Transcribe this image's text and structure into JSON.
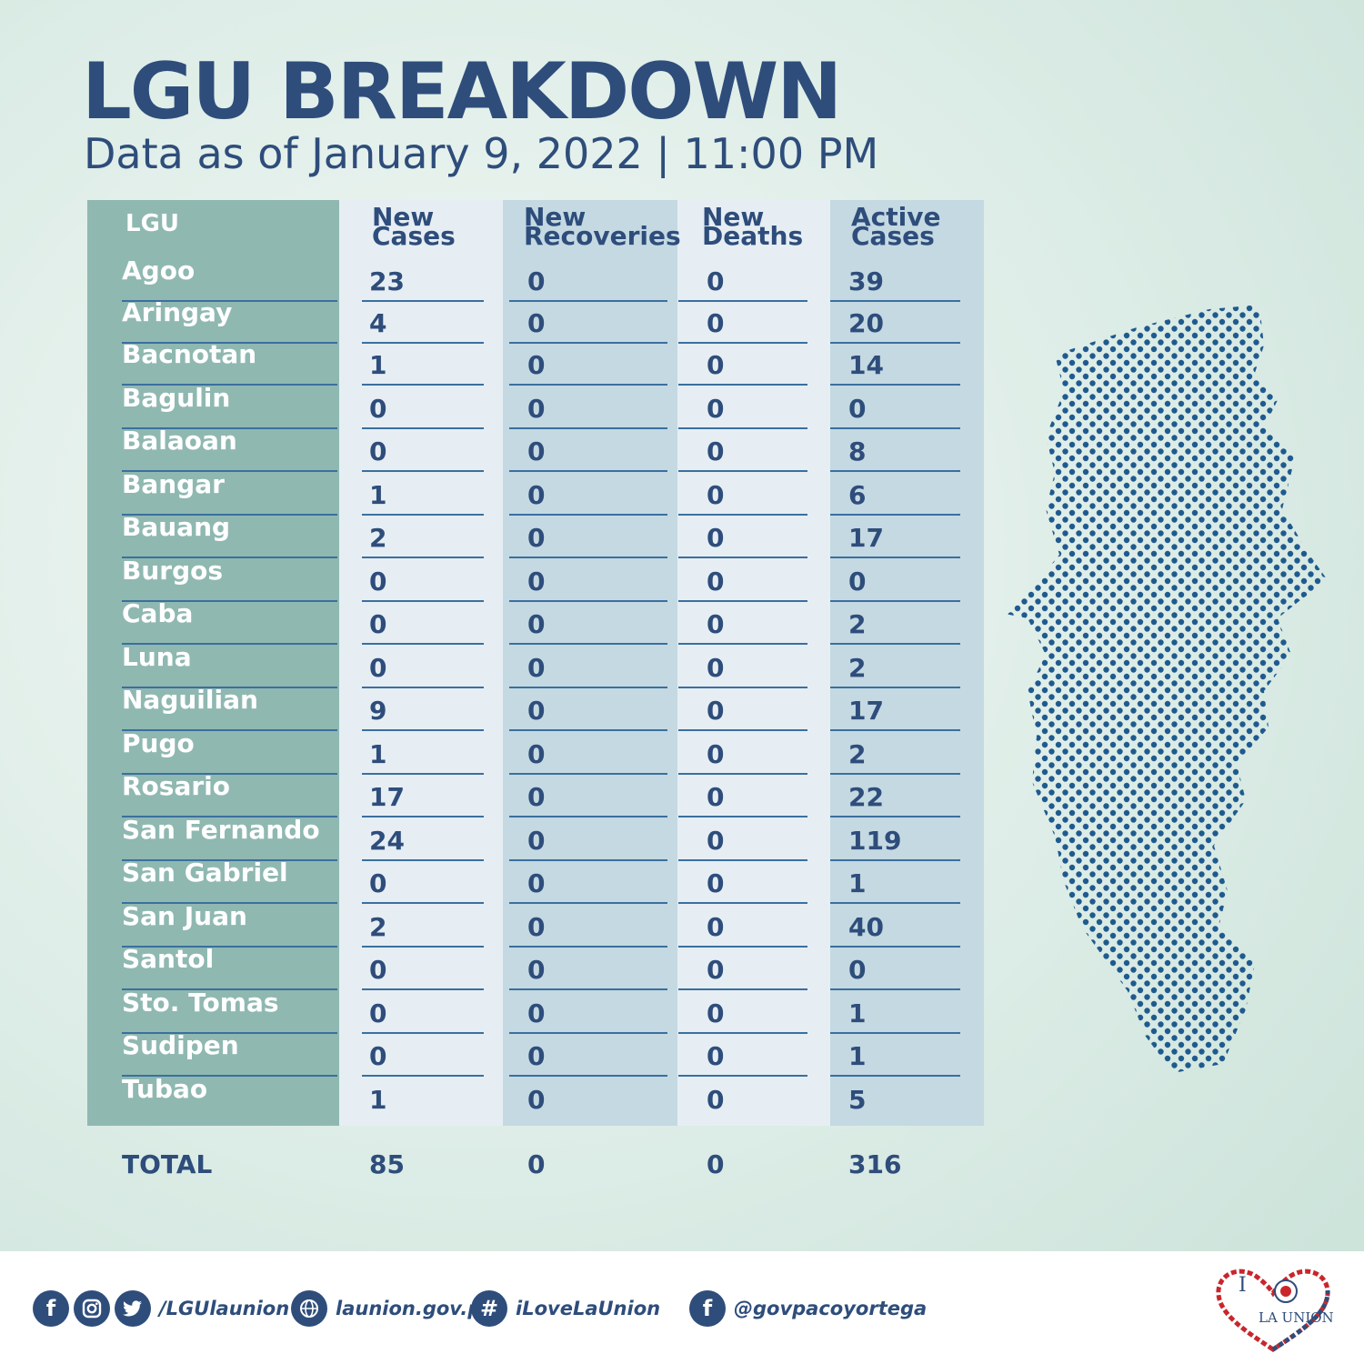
{
  "header": {
    "title": "LGU BREAKDOWN",
    "subtitle": "Data as of January 9, 2022 | 11:00 PM"
  },
  "table": {
    "columns": [
      "LGU",
      "New\nCases",
      "New\nRecoveries",
      "New\nDeaths",
      "Active\nCases"
    ],
    "rows": [
      {
        "lgu": "Agoo",
        "new_cases": "23",
        "new_recoveries": "0",
        "new_deaths": "0",
        "active_cases": "39"
      },
      {
        "lgu": "Aringay",
        "new_cases": "4",
        "new_recoveries": "0",
        "new_deaths": "0",
        "active_cases": "20"
      },
      {
        "lgu": "Bacnotan",
        "new_cases": "1",
        "new_recoveries": "0",
        "new_deaths": "0",
        "active_cases": "14"
      },
      {
        "lgu": "Bagulin",
        "new_cases": "0",
        "new_recoveries": "0",
        "new_deaths": "0",
        "active_cases": "0"
      },
      {
        "lgu": "Balaoan",
        "new_cases": "0",
        "new_recoveries": "0",
        "new_deaths": "0",
        "active_cases": "8"
      },
      {
        "lgu": "Bangar",
        "new_cases": "1",
        "new_recoveries": "0",
        "new_deaths": "0",
        "active_cases": "6"
      },
      {
        "lgu": "Bauang",
        "new_cases": "2",
        "new_recoveries": "0",
        "new_deaths": "0",
        "active_cases": "17"
      },
      {
        "lgu": "Burgos",
        "new_cases": "0",
        "new_recoveries": "0",
        "new_deaths": "0",
        "active_cases": "0"
      },
      {
        "lgu": "Caba",
        "new_cases": "0",
        "new_recoveries": "0",
        "new_deaths": "0",
        "active_cases": "2"
      },
      {
        "lgu": "Luna",
        "new_cases": "0",
        "new_recoveries": "0",
        "new_deaths": "0",
        "active_cases": "2"
      },
      {
        "lgu": "Naguilian",
        "new_cases": "9",
        "new_recoveries": "0",
        "new_deaths": "0",
        "active_cases": "17"
      },
      {
        "lgu": "Pugo",
        "new_cases": "1",
        "new_recoveries": "0",
        "new_deaths": "0",
        "active_cases": "2"
      },
      {
        "lgu": "Rosario",
        "new_cases": "17",
        "new_recoveries": "0",
        "new_deaths": "0",
        "active_cases": "22"
      },
      {
        "lgu": "San Fernando",
        "new_cases": "24",
        "new_recoveries": "0",
        "new_deaths": "0",
        "active_cases": "119"
      },
      {
        "lgu": "San Gabriel",
        "new_cases": "0",
        "new_recoveries": "0",
        "new_deaths": "0",
        "active_cases": "1"
      },
      {
        "lgu": "San Juan",
        "new_cases": "2",
        "new_recoveries": "0",
        "new_deaths": "0",
        "active_cases": "40"
      },
      {
        "lgu": "Santol",
        "new_cases": "0",
        "new_recoveries": "0",
        "new_deaths": "0",
        "active_cases": "0"
      },
      {
        "lgu": "Sto. Tomas",
        "new_cases": "0",
        "new_recoveries": "0",
        "new_deaths": "0",
        "active_cases": "1"
      },
      {
        "lgu": "Sudipen",
        "new_cases": "0",
        "new_recoveries": "0",
        "new_deaths": "0",
        "active_cases": "1"
      },
      {
        "lgu": "Tubao",
        "new_cases": "1",
        "new_recoveries": "0",
        "new_deaths": "0",
        "active_cases": "5"
      }
    ],
    "total": {
      "label": "TOTAL",
      "new_cases": "85",
      "new_recoveries": "0",
      "new_deaths": "0",
      "active_cases": "316"
    }
  },
  "footer": {
    "facebook_handle": "/LGUlaunion",
    "website": "launion.gov.ph",
    "hashtag": "iLoveLaUnion",
    "governor_handle": "@govpacoyortega",
    "icons": [
      "facebook-icon",
      "instagram-icon",
      "twitter-icon",
      "web-icon",
      "hashtag-icon",
      "facebook-icon"
    ]
  },
  "logo": {
    "text_i": "I",
    "text_la_union": "LA UNION"
  },
  "colors": {
    "primary": "#2e4d7b",
    "lgu_column": "#8fb8b1",
    "light_column": "#e6eef4",
    "blue_column": "#c4d9e2",
    "background": "#dcece6"
  }
}
